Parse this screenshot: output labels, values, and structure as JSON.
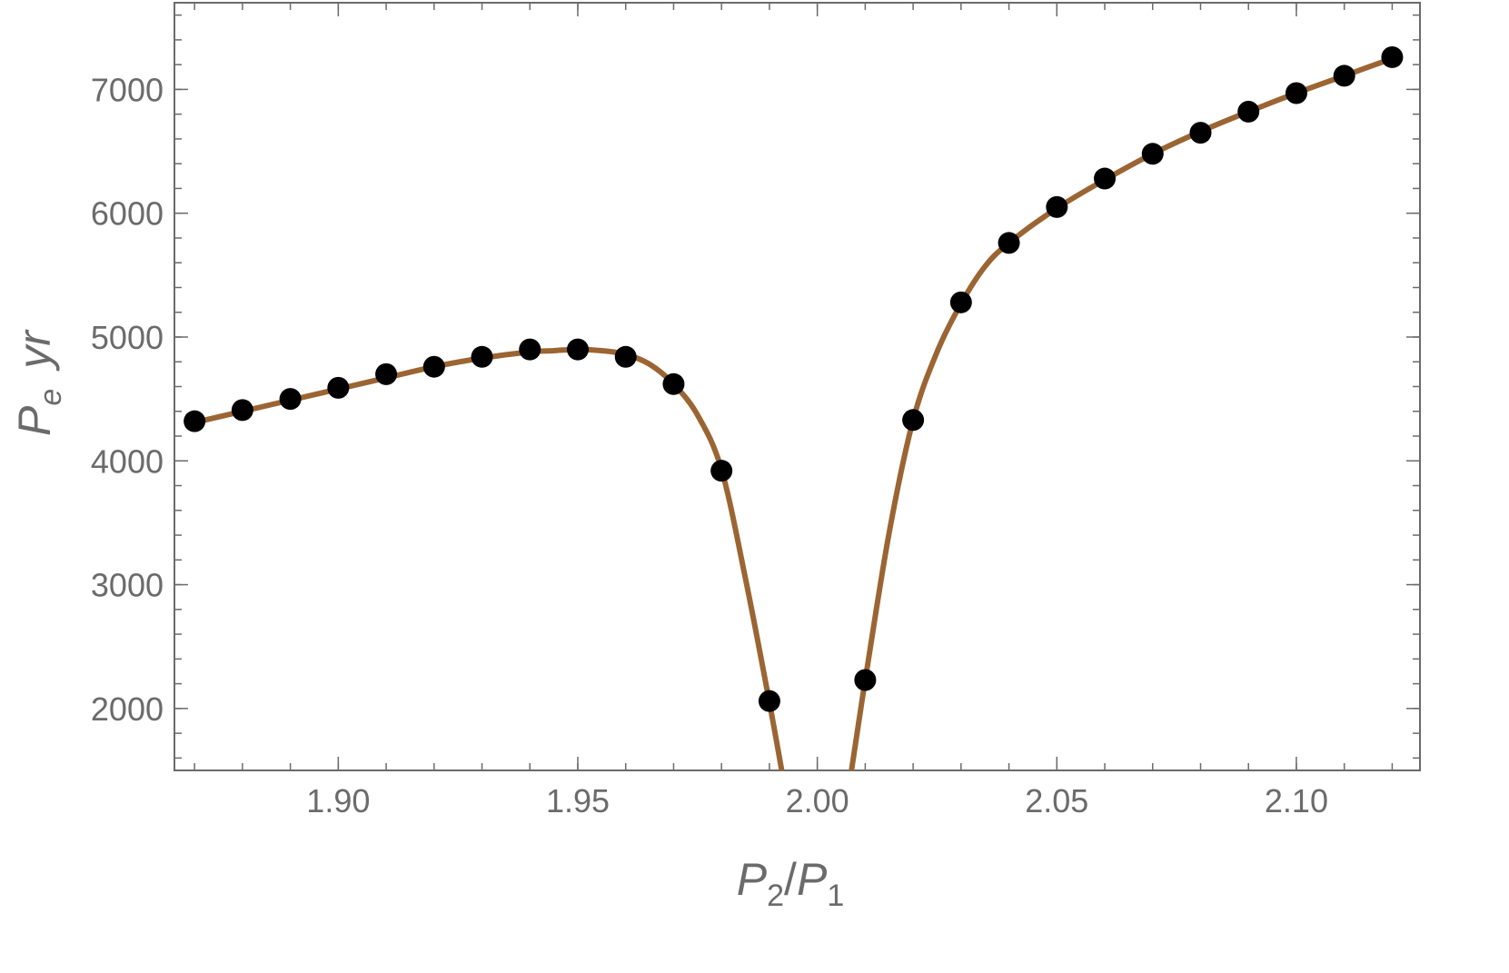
{
  "chart_data": {
    "type": "line",
    "xlabel": {
      "main1": "P",
      "sub1": "2",
      "slash": "/",
      "main2": "P",
      "sub2": "1"
    },
    "ylabel": {
      "main": "P",
      "sub": "e",
      "unit": "yr"
    },
    "xlim": [
      1.8658,
      2.1258
    ],
    "ylim": [
      1500,
      7700
    ],
    "x_ticks": [
      {
        "value": 1.9,
        "label": "1.90"
      },
      {
        "value": 1.95,
        "label": "1.95"
      },
      {
        "value": 2.0,
        "label": "2.00"
      },
      {
        "value": 2.05,
        "label": "2.05"
      },
      {
        "value": 2.1,
        "label": "2.10"
      }
    ],
    "y_ticks": [
      {
        "value": 2000,
        "label": "2000"
      },
      {
        "value": 3000,
        "label": "3000"
      },
      {
        "value": 4000,
        "label": "4000"
      },
      {
        "value": 5000,
        "label": "5000"
      },
      {
        "value": 6000,
        "label": "6000"
      },
      {
        "value": 7000,
        "label": "7000"
      }
    ],
    "x_minor_step": 0.01,
    "y_minor_step": 200,
    "grid": false,
    "colors": {
      "curve": "#9b6533",
      "points": "#000000",
      "frame": "#6b6b6b"
    },
    "series": [
      {
        "kind": "curve",
        "x": [
          1.87,
          1.88,
          1.89,
          1.9,
          1.91,
          1.92,
          1.93,
          1.94,
          1.945,
          1.95,
          1.955,
          1.96,
          1.965,
          1.97,
          1.975,
          1.98,
          1.985,
          1.99,
          1.995,
          2.0,
          2.005,
          2.01,
          2.015,
          2.02,
          2.025,
          2.03,
          2.035,
          2.04,
          2.05,
          2.06,
          2.07,
          2.08,
          2.09,
          2.1,
          2.11,
          2.12
        ],
        "y": [
          4310,
          4400,
          4490,
          4580,
          4670,
          4760,
          4830,
          4880,
          4890,
          4900,
          4890,
          4860,
          4780,
          4620,
          4370,
          3930,
          3050,
          2050,
          1000,
          150,
          1000,
          2230,
          3420,
          4330,
          4880,
          5270,
          5570,
          5760,
          6040,
          6270,
          6480,
          6660,
          6820,
          6970,
          7110,
          7250
        ]
      },
      {
        "kind": "points",
        "x": [
          1.87,
          1.88,
          1.89,
          1.9,
          1.91,
          1.92,
          1.93,
          1.94,
          1.95,
          1.96,
          1.97,
          1.98,
          1.99,
          2.01,
          2.02,
          2.03,
          2.04,
          2.05,
          2.06,
          2.07,
          2.08,
          2.09,
          2.1,
          2.11,
          2.12
        ],
        "y": [
          4320,
          4410,
          4500,
          4590,
          4700,
          4760,
          4840,
          4900,
          4900,
          4840,
          4620,
          3920,
          2060,
          2230,
          4330,
          5280,
          5760,
          6050,
          6280,
          6480,
          6650,
          6820,
          6970,
          7110,
          7260
        ]
      }
    ]
  }
}
